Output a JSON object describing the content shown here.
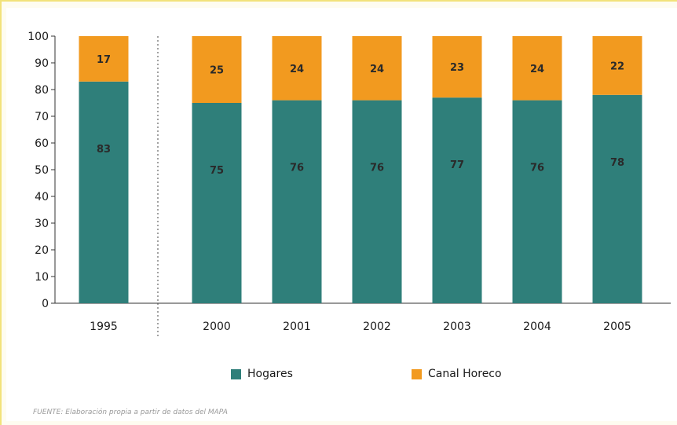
{
  "chart_data": {
    "type": "bar",
    "stacked": true,
    "categories": [
      "1995",
      "2000",
      "2001",
      "2002",
      "2003",
      "2004",
      "2005"
    ],
    "series": [
      {
        "name": "Hogares",
        "color": "#2f7f7a",
        "values": [
          83,
          75,
          76,
          76,
          77,
          76,
          78
        ],
        "labels": [
          "83",
          "75",
          "76",
          "76",
          "77",
          "76",
          "78"
        ]
      },
      {
        "name": "Canal Horeco",
        "color": "#f29a1f",
        "values": [
          17,
          25,
          24,
          24,
          23,
          24,
          22
        ],
        "labels": [
          "17",
          "25",
          "24",
          "24",
          "23",
          "24",
          "22"
        ]
      }
    ],
    "ylim": [
      0,
      100
    ],
    "yticks": [
      "0",
      "10",
      "20",
      "30",
      "40",
      "50",
      "60",
      "70",
      "80",
      "90",
      "100"
    ],
    "grid": false,
    "separator_after_category": "1995",
    "legend": "bottom"
  },
  "source": "FUENTE: Elaboración propia a partir de datos del MAPA"
}
